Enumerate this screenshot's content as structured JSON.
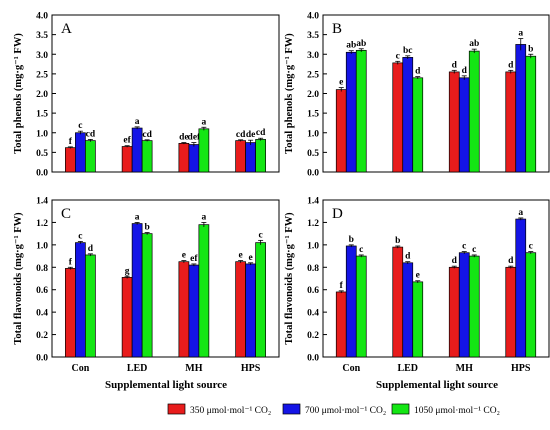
{
  "x_axis_title": "Supplemental light source",
  "colors": [
    "#e81c1c",
    "#1414e6",
    "#14e614"
  ],
  "chart_data": [
    {
      "type": "bar",
      "panel_letter": "A",
      "ylabel": "Total phenols (mg·g⁻¹ FW)",
      "ylim": [
        0,
        4.0
      ],
      "yticks": [
        "0.0",
        "0.5",
        "1.0",
        "1.5",
        "2.0",
        "2.5",
        "3.0",
        "3.5",
        "4.0"
      ],
      "categories": [
        "Con",
        "LED",
        "MH",
        "HPS"
      ],
      "series": [
        {
          "name": "350 μmol·mol⁻¹ CO₂",
          "values": [
            0.62,
            0.65,
            0.73,
            0.8
          ],
          "errors": [
            0.02,
            0.02,
            0.02,
            0.02
          ],
          "letters": [
            "f",
            "ef",
            "de",
            "cd"
          ]
        },
        {
          "name": "700 μmol·mol⁻¹ CO₂",
          "values": [
            1.0,
            1.12,
            0.7,
            0.75
          ],
          "errors": [
            0.04,
            0.03,
            0.05,
            0.06
          ],
          "letters": [
            "c",
            "a",
            "def",
            "de"
          ]
        },
        {
          "name": "1050 μmol·mol⁻¹ CO₂",
          "values": [
            0.8,
            0.8,
            1.1,
            0.83
          ],
          "errors": [
            0.03,
            0.02,
            0.04,
            0.03
          ],
          "letters": [
            "cd",
            "cd",
            "a",
            "cd"
          ]
        }
      ],
      "show_xlabels": false
    },
    {
      "type": "bar",
      "panel_letter": "B",
      "ylabel": "Total phenols (mg·g⁻¹ FW)",
      "ylim": [
        0,
        4.0
      ],
      "yticks": [
        "0.0",
        "0.5",
        "1.0",
        "1.5",
        "2.0",
        "2.5",
        "3.0",
        "3.5",
        "4.0"
      ],
      "categories": [
        "Con",
        "LED",
        "MH",
        "HPS"
      ],
      "series": [
        {
          "name": "350 μmol·mol⁻¹ CO₂",
          "values": [
            2.1,
            2.78,
            2.55,
            2.55
          ],
          "errors": [
            0.05,
            0.04,
            0.04,
            0.04
          ],
          "letters": [
            "e",
            "c",
            "d",
            "d"
          ]
        },
        {
          "name": "700 μmol·mol⁻¹ CO₂",
          "values": [
            3.05,
            2.92,
            2.4,
            3.25
          ],
          "errors": [
            0.04,
            0.04,
            0.05,
            0.15
          ],
          "letters": [
            "ab",
            "bc",
            "d",
            "a"
          ]
        },
        {
          "name": "1050 μmol·mol⁻¹ CO₂",
          "values": [
            3.1,
            2.4,
            3.08,
            2.95
          ],
          "errors": [
            0.04,
            0.03,
            0.05,
            0.05
          ],
          "letters": [
            "ab",
            "d",
            "ab",
            "b"
          ]
        }
      ],
      "show_xlabels": false
    },
    {
      "type": "bar",
      "panel_letter": "C",
      "ylabel": "Total flavonoids (mg·g⁻¹ FW)",
      "ylim": [
        0,
        1.4
      ],
      "yticks": [
        "0.0",
        "0.2",
        "0.4",
        "0.6",
        "0.8",
        "1.0",
        "1.2",
        "1.4"
      ],
      "categories": [
        "Con",
        "LED",
        "MH",
        "HPS"
      ],
      "series": [
        {
          "name": "350 μmol·mol⁻¹ CO₂",
          "values": [
            0.79,
            0.71,
            0.85,
            0.85
          ],
          "errors": [
            0.01,
            0.01,
            0.01,
            0.01
          ],
          "letters": [
            "f",
            "g",
            "e",
            "e"
          ]
        },
        {
          "name": "700 μmol·mol⁻¹ CO₂",
          "values": [
            1.02,
            1.19,
            0.82,
            0.83
          ],
          "errors": [
            0.01,
            0.01,
            0.01,
            0.01
          ],
          "letters": [
            "c",
            "a",
            "ef",
            "e"
          ]
        },
        {
          "name": "1050 μmol·mol⁻¹ CO₂",
          "values": [
            0.91,
            1.1,
            1.18,
            1.02
          ],
          "errors": [
            0.01,
            0.01,
            0.02,
            0.02
          ],
          "letters": [
            "d",
            "b",
            "a",
            "c"
          ]
        }
      ],
      "show_xlabels": true
    },
    {
      "type": "bar",
      "panel_letter": "D",
      "ylabel": "Total flavonoids (mg·g⁻¹ FW)",
      "ylim": [
        0,
        1.4
      ],
      "yticks": [
        "0.0",
        "0.2",
        "0.4",
        "0.6",
        "0.8",
        "1.0",
        "1.2",
        "1.4"
      ],
      "categories": [
        "Con",
        "LED",
        "MH",
        "HPS"
      ],
      "series": [
        {
          "name": "350 μmol·mol⁻¹ CO₂",
          "values": [
            0.58,
            0.98,
            0.8,
            0.8
          ],
          "errors": [
            0.01,
            0.01,
            0.01,
            0.01
          ],
          "letters": [
            "f",
            "b",
            "d",
            "d"
          ]
        },
        {
          "name": "700 μmol·mol⁻¹ CO₂",
          "values": [
            0.99,
            0.84,
            0.93,
            1.23
          ],
          "errors": [
            0.01,
            0.01,
            0.01,
            0.01
          ],
          "letters": [
            "b",
            "d",
            "c",
            "a"
          ]
        },
        {
          "name": "1050 μmol·mol⁻¹ CO₂",
          "values": [
            0.9,
            0.67,
            0.9,
            0.93
          ],
          "errors": [
            0.01,
            0.01,
            0.01,
            0.01
          ],
          "letters": [
            "c",
            "e",
            "c",
            "c"
          ]
        }
      ],
      "show_xlabels": true
    }
  ],
  "legend": {
    "items": [
      {
        "label": "350 μmol·mol⁻¹ CO₂"
      },
      {
        "label": "700 μmol·mol⁻¹ CO₂"
      },
      {
        "label": "1050 μmol·mol⁻¹ CO₂"
      }
    ]
  }
}
